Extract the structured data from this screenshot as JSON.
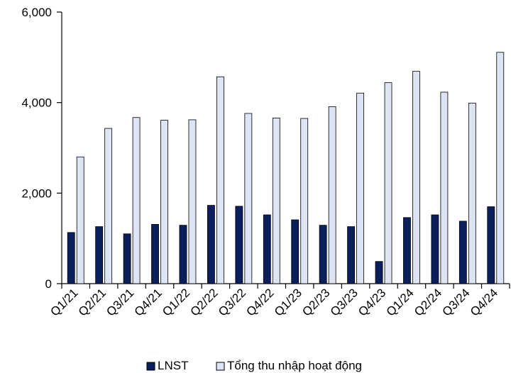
{
  "chart_data": {
    "type": "bar",
    "title": "",
    "xlabel": "",
    "ylabel": "",
    "ylim": [
      0,
      6000
    ],
    "yticks": [
      "0",
      "2,000",
      "4,000",
      "6,000"
    ],
    "ytick_values": [
      0,
      2000,
      4000,
      6000
    ],
    "grid": false,
    "legend_position": "bottom",
    "categories": [
      "Q1/21",
      "Q2/21",
      "Q3/21",
      "Q4/21",
      "Q1/22",
      "Q2/22",
      "Q3/22",
      "Q4/22",
      "Q1/23",
      "Q2/23",
      "Q3/23",
      "Q4/23",
      "Q1/24",
      "Q2/24",
      "Q3/24",
      "Q4/24"
    ],
    "series": [
      {
        "name": "LNST",
        "color": "#0a1f5c",
        "values": [
          1130,
          1260,
          1100,
          1310,
          1290,
          1730,
          1710,
          1520,
          1410,
          1290,
          1260,
          490,
          1460,
          1520,
          1380,
          1700
        ]
      },
      {
        "name": "Tổng thu nhập hoạt động",
        "color": "#dde4f3",
        "values": [
          2800,
          3430,
          3670,
          3610,
          3620,
          4570,
          3760,
          3660,
          3650,
          3910,
          4210,
          4440,
          4690,
          4230,
          3990,
          5110
        ]
      }
    ]
  }
}
